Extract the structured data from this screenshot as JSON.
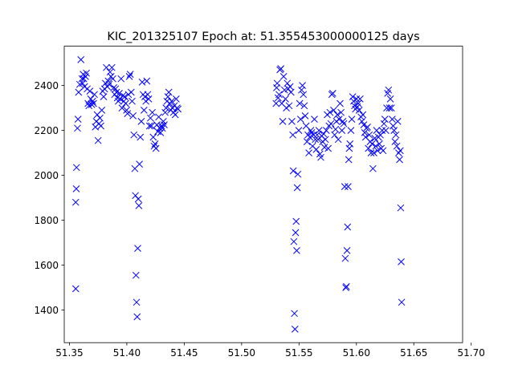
{
  "chart_data": {
    "type": "scatter",
    "title": "KIC_201325107 Epoch at: 51.355453000000125 days",
    "xlabel": "",
    "ylabel": "",
    "xlim": [
      51.3455,
      51.6925
    ],
    "ylim": [
      1255,
      2575
    ],
    "grid": false,
    "marker": "x",
    "color": "#0000ff",
    "x_ticks": [
      {
        "value": 51.35,
        "label": "51.35"
      },
      {
        "value": 51.4,
        "label": "51.40"
      },
      {
        "value": 51.45,
        "label": "51.45"
      },
      {
        "value": 51.5,
        "label": "51.50"
      },
      {
        "value": 51.55,
        "label": "51.55"
      },
      {
        "value": 51.6,
        "label": "51.60"
      },
      {
        "value": 51.65,
        "label": "51.65"
      },
      {
        "value": 51.7,
        "label": "51.70"
      }
    ],
    "y_ticks": [
      {
        "value": 1400,
        "label": "1400"
      },
      {
        "value": 1600,
        "label": "1600"
      },
      {
        "value": 1800,
        "label": "1800"
      },
      {
        "value": 2000,
        "label": "2000"
      },
      {
        "value": 2200,
        "label": "2200"
      },
      {
        "value": 2400,
        "label": "2400"
      }
    ],
    "points": [
      [
        51.3555,
        1495
      ],
      [
        51.3555,
        1880
      ],
      [
        51.356,
        1940
      ],
      [
        51.3562,
        2035
      ],
      [
        51.357,
        2210
      ],
      [
        51.3575,
        2250
      ],
      [
        51.358,
        2370
      ],
      [
        51.359,
        2405
      ],
      [
        51.36,
        2515
      ],
      [
        51.361,
        2430
      ],
      [
        51.3615,
        2410
      ],
      [
        51.362,
        2450
      ],
      [
        51.3625,
        2430
      ],
      [
        51.3632,
        2395
      ],
      [
        51.364,
        2440
      ],
      [
        51.3648,
        2455
      ],
      [
        51.3655,
        2385
      ],
      [
        51.3662,
        2320
      ],
      [
        51.367,
        2310
      ],
      [
        51.3678,
        2375
      ],
      [
        51.3686,
        2340
      ],
      [
        51.3694,
        2315
      ],
      [
        51.3702,
        2330
      ],
      [
        51.371,
        2320
      ],
      [
        51.3718,
        2360
      ],
      [
        51.3726,
        2215
      ],
      [
        51.3734,
        2240
      ],
      [
        51.3742,
        2270
      ],
      [
        51.375,
        2155
      ],
      [
        51.3758,
        2230
      ],
      [
        51.3766,
        2255
      ],
      [
        51.3774,
        2220
      ],
      [
        51.3782,
        2290
      ],
      [
        51.379,
        2375
      ],
      [
        51.3798,
        2350
      ],
      [
        51.3806,
        2385
      ],
      [
        51.3814,
        2410
      ],
      [
        51.3822,
        2480
      ],
      [
        51.383,
        2395
      ],
      [
        51.3838,
        2420
      ],
      [
        51.3846,
        2405
      ],
      [
        51.3854,
        2460
      ],
      [
        51.3862,
        2440
      ],
      [
        51.387,
        2480
      ],
      [
        51.3878,
        2430
      ],
      [
        51.3886,
        2390
      ],
      [
        51.3894,
        2360
      ],
      [
        51.3902,
        2385
      ],
      [
        51.391,
        2370
      ],
      [
        51.3918,
        2345
      ],
      [
        51.3926,
        2330
      ],
      [
        51.3934,
        2365
      ],
      [
        51.3942,
        2340
      ],
      [
        51.395,
        2430
      ],
      [
        51.3958,
        2300
      ],
      [
        51.3966,
        2355
      ],
      [
        51.3974,
        2330
      ],
      [
        51.3982,
        2350
      ],
      [
        51.399,
        2320
      ],
      [
        51.3998,
        2290
      ],
      [
        51.4006,
        2275
      ],
      [
        51.4014,
        2360
      ],
      [
        51.4022,
        2440
      ],
      [
        51.403,
        2450
      ],
      [
        51.4038,
        2370
      ],
      [
        51.4046,
        2330
      ],
      [
        51.4054,
        2265
      ],
      [
        51.4062,
        2180
      ],
      [
        51.407,
        2030
      ],
      [
        51.4075,
        1910
      ],
      [
        51.408,
        1555
      ],
      [
        51.4085,
        1435
      ],
      [
        51.409,
        1370
      ],
      [
        51.4095,
        1675
      ],
      [
        51.41,
        1895
      ],
      [
        51.4105,
        1865
      ],
      [
        51.411,
        2050
      ],
      [
        51.4118,
        2170
      ],
      [
        51.4126,
        2240
      ],
      [
        51.4134,
        2415
      ],
      [
        51.4142,
        2360
      ],
      [
        51.415,
        2290
      ],
      [
        51.4158,
        2350
      ],
      [
        51.4166,
        2330
      ],
      [
        51.4174,
        2420
      ],
      [
        51.4182,
        2360
      ],
      [
        51.419,
        2340
      ],
      [
        51.4198,
        2220
      ],
      [
        51.4206,
        2255
      ],
      [
        51.4214,
        2220
      ],
      [
        51.4222,
        2280
      ],
      [
        51.423,
        2170
      ],
      [
        51.4238,
        2130
      ],
      [
        51.4246,
        2140
      ],
      [
        51.4254,
        2120
      ],
      [
        51.4262,
        2225
      ],
      [
        51.427,
        2195
      ],
      [
        51.4278,
        2260
      ],
      [
        51.4286,
        2210
      ],
      [
        51.4294,
        2190
      ],
      [
        51.4302,
        2220
      ],
      [
        51.431,
        2210
      ],
      [
        51.4318,
        2240
      ],
      [
        51.4326,
        2225
      ],
      [
        51.4334,
        2280
      ],
      [
        51.4342,
        2300
      ],
      [
        51.435,
        2330
      ],
      [
        51.4358,
        2350
      ],
      [
        51.4366,
        2370
      ],
      [
        51.4374,
        2320
      ],
      [
        51.4382,
        2290
      ],
      [
        51.439,
        2330
      ],
      [
        51.4398,
        2300
      ],
      [
        51.4406,
        2280
      ],
      [
        51.4414,
        2310
      ],
      [
        51.4422,
        2270
      ],
      [
        51.443,
        2340
      ],
      [
        51.4438,
        2300
      ],
      [
        51.4446,
        2295
      ],
      [
        51.53,
        2320
      ],
      [
        51.5305,
        2390
      ],
      [
        51.531,
        2410
      ],
      [
        51.5318,
        2345
      ],
      [
        51.5326,
        2360
      ],
      [
        51.5334,
        2470
      ],
      [
        51.5342,
        2475
      ],
      [
        51.535,
        2320
      ],
      [
        51.5358,
        2240
      ],
      [
        51.5366,
        2440
      ],
      [
        51.5374,
        2380
      ],
      [
        51.5382,
        2340
      ],
      [
        51.539,
        2300
      ],
      [
        51.5398,
        2410
      ],
      [
        51.5406,
        2385
      ],
      [
        51.5414,
        2310
      ],
      [
        51.5422,
        2395
      ],
      [
        51.543,
        2370
      ],
      [
        51.5438,
        2240
      ],
      [
        51.5446,
        2180
      ],
      [
        51.545,
        2020
      ],
      [
        51.5455,
        1705
      ],
      [
        51.546,
        1385
      ],
      [
        51.5465,
        1315
      ],
      [
        51.547,
        1745
      ],
      [
        51.5475,
        1795
      ],
      [
        51.548,
        1665
      ],
      [
        51.5485,
        1945
      ],
      [
        51.549,
        2005
      ],
      [
        51.5498,
        2200
      ],
      [
        51.5506,
        2320
      ],
      [
        51.5514,
        2250
      ],
      [
        51.5522,
        2380
      ],
      [
        51.553,
        2400
      ],
      [
        51.5538,
        2360
      ],
      [
        51.5546,
        2310
      ],
      [
        51.5554,
        2265
      ],
      [
        51.5562,
        2220
      ],
      [
        51.557,
        2150
      ],
      [
        51.5578,
        2180
      ],
      [
        51.5586,
        2100
      ],
      [
        51.5594,
        2170
      ],
      [
        51.5602,
        2200
      ],
      [
        51.561,
        2190
      ],
      [
        51.5618,
        2130
      ],
      [
        51.5626,
        2180
      ],
      [
        51.5634,
        2250
      ],
      [
        51.5642,
        2160
      ],
      [
        51.565,
        2115
      ],
      [
        51.5658,
        2180
      ],
      [
        51.5666,
        2160
      ],
      [
        51.5674,
        2200
      ],
      [
        51.5682,
        2095
      ],
      [
        51.569,
        2080
      ],
      [
        51.5698,
        2175
      ],
      [
        51.5706,
        2150
      ],
      [
        51.5714,
        2185
      ],
      [
        51.5722,
        2125
      ],
      [
        51.573,
        2160
      ],
      [
        51.5738,
        2200
      ],
      [
        51.5746,
        2270
      ],
      [
        51.5754,
        2120
      ],
      [
        51.5762,
        2220
      ],
      [
        51.577,
        2280
      ],
      [
        51.5778,
        2230
      ],
      [
        51.5786,
        2360
      ],
      [
        51.5794,
        2365
      ],
      [
        51.5802,
        2290
      ],
      [
        51.581,
        2180
      ],
      [
        51.5818,
        2205
      ],
      [
        51.5826,
        2240
      ],
      [
        51.5834,
        2270
      ],
      [
        51.5842,
        2160
      ],
      [
        51.585,
        2250
      ],
      [
        51.5858,
        2320
      ],
      [
        51.5866,
        2280
      ],
      [
        51.5874,
        2200
      ],
      [
        51.5882,
        2240
      ],
      [
        51.589,
        2230
      ],
      [
        51.5898,
        1950
      ],
      [
        51.5903,
        1630
      ],
      [
        51.5908,
        1500
      ],
      [
        51.5913,
        1505
      ],
      [
        51.5918,
        1665
      ],
      [
        51.5923,
        1770
      ],
      [
        51.5928,
        1950
      ],
      [
        51.5933,
        2070
      ],
      [
        51.5938,
        2120
      ],
      [
        51.5944,
        2140
      ],
      [
        51.5952,
        2200
      ],
      [
        51.596,
        2250
      ],
      [
        51.5968,
        2350
      ],
      [
        51.5976,
        2330
      ],
      [
        51.5984,
        2310
      ],
      [
        51.5992,
        2295
      ],
      [
        51.6,
        2340
      ],
      [
        51.6008,
        2305
      ],
      [
        51.6016,
        2320
      ],
      [
        51.6024,
        2290
      ],
      [
        51.6032,
        2340
      ],
      [
        51.604,
        2260
      ],
      [
        51.6048,
        2240
      ],
      [
        51.6056,
        2270
      ],
      [
        51.6064,
        2225
      ],
      [
        51.6072,
        2190
      ],
      [
        51.608,
        2170
      ],
      [
        51.6088,
        2210
      ],
      [
        51.6096,
        2215
      ],
      [
        51.6104,
        2120
      ],
      [
        51.6112,
        2180
      ],
      [
        51.612,
        2150
      ],
      [
        51.6128,
        2100
      ],
      [
        51.6136,
        2140
      ],
      [
        51.6144,
        2030
      ],
      [
        51.6152,
        2100
      ],
      [
        51.616,
        2165
      ],
      [
        51.6168,
        2130
      ],
      [
        51.6176,
        2200
      ],
      [
        51.6184,
        2110
      ],
      [
        51.6192,
        2170
      ],
      [
        51.62,
        2140
      ],
      [
        51.6208,
        2180
      ],
      [
        51.6216,
        2120
      ],
      [
        51.6224,
        2200
      ],
      [
        51.6232,
        2110
      ],
      [
        51.624,
        2230
      ],
      [
        51.6248,
        2250
      ],
      [
        51.6256,
        2200
      ],
      [
        51.6264,
        2300
      ],
      [
        51.6272,
        2365
      ],
      [
        51.628,
        2380
      ],
      [
        51.6288,
        2300
      ],
      [
        51.6296,
        2340
      ],
      [
        51.6304,
        2300
      ],
      [
        51.6312,
        2250
      ],
      [
        51.632,
        2220
      ],
      [
        51.6328,
        2200
      ],
      [
        51.6336,
        2150
      ],
      [
        51.6344,
        2180
      ],
      [
        51.6352,
        2130
      ],
      [
        51.636,
        2240
      ],
      [
        51.6368,
        2100
      ],
      [
        51.6376,
        2070
      ],
      [
        51.6382,
        2110
      ],
      [
        51.6386,
        1855
      ],
      [
        51.639,
        1615
      ],
      [
        51.6394,
        1435
      ]
    ]
  }
}
